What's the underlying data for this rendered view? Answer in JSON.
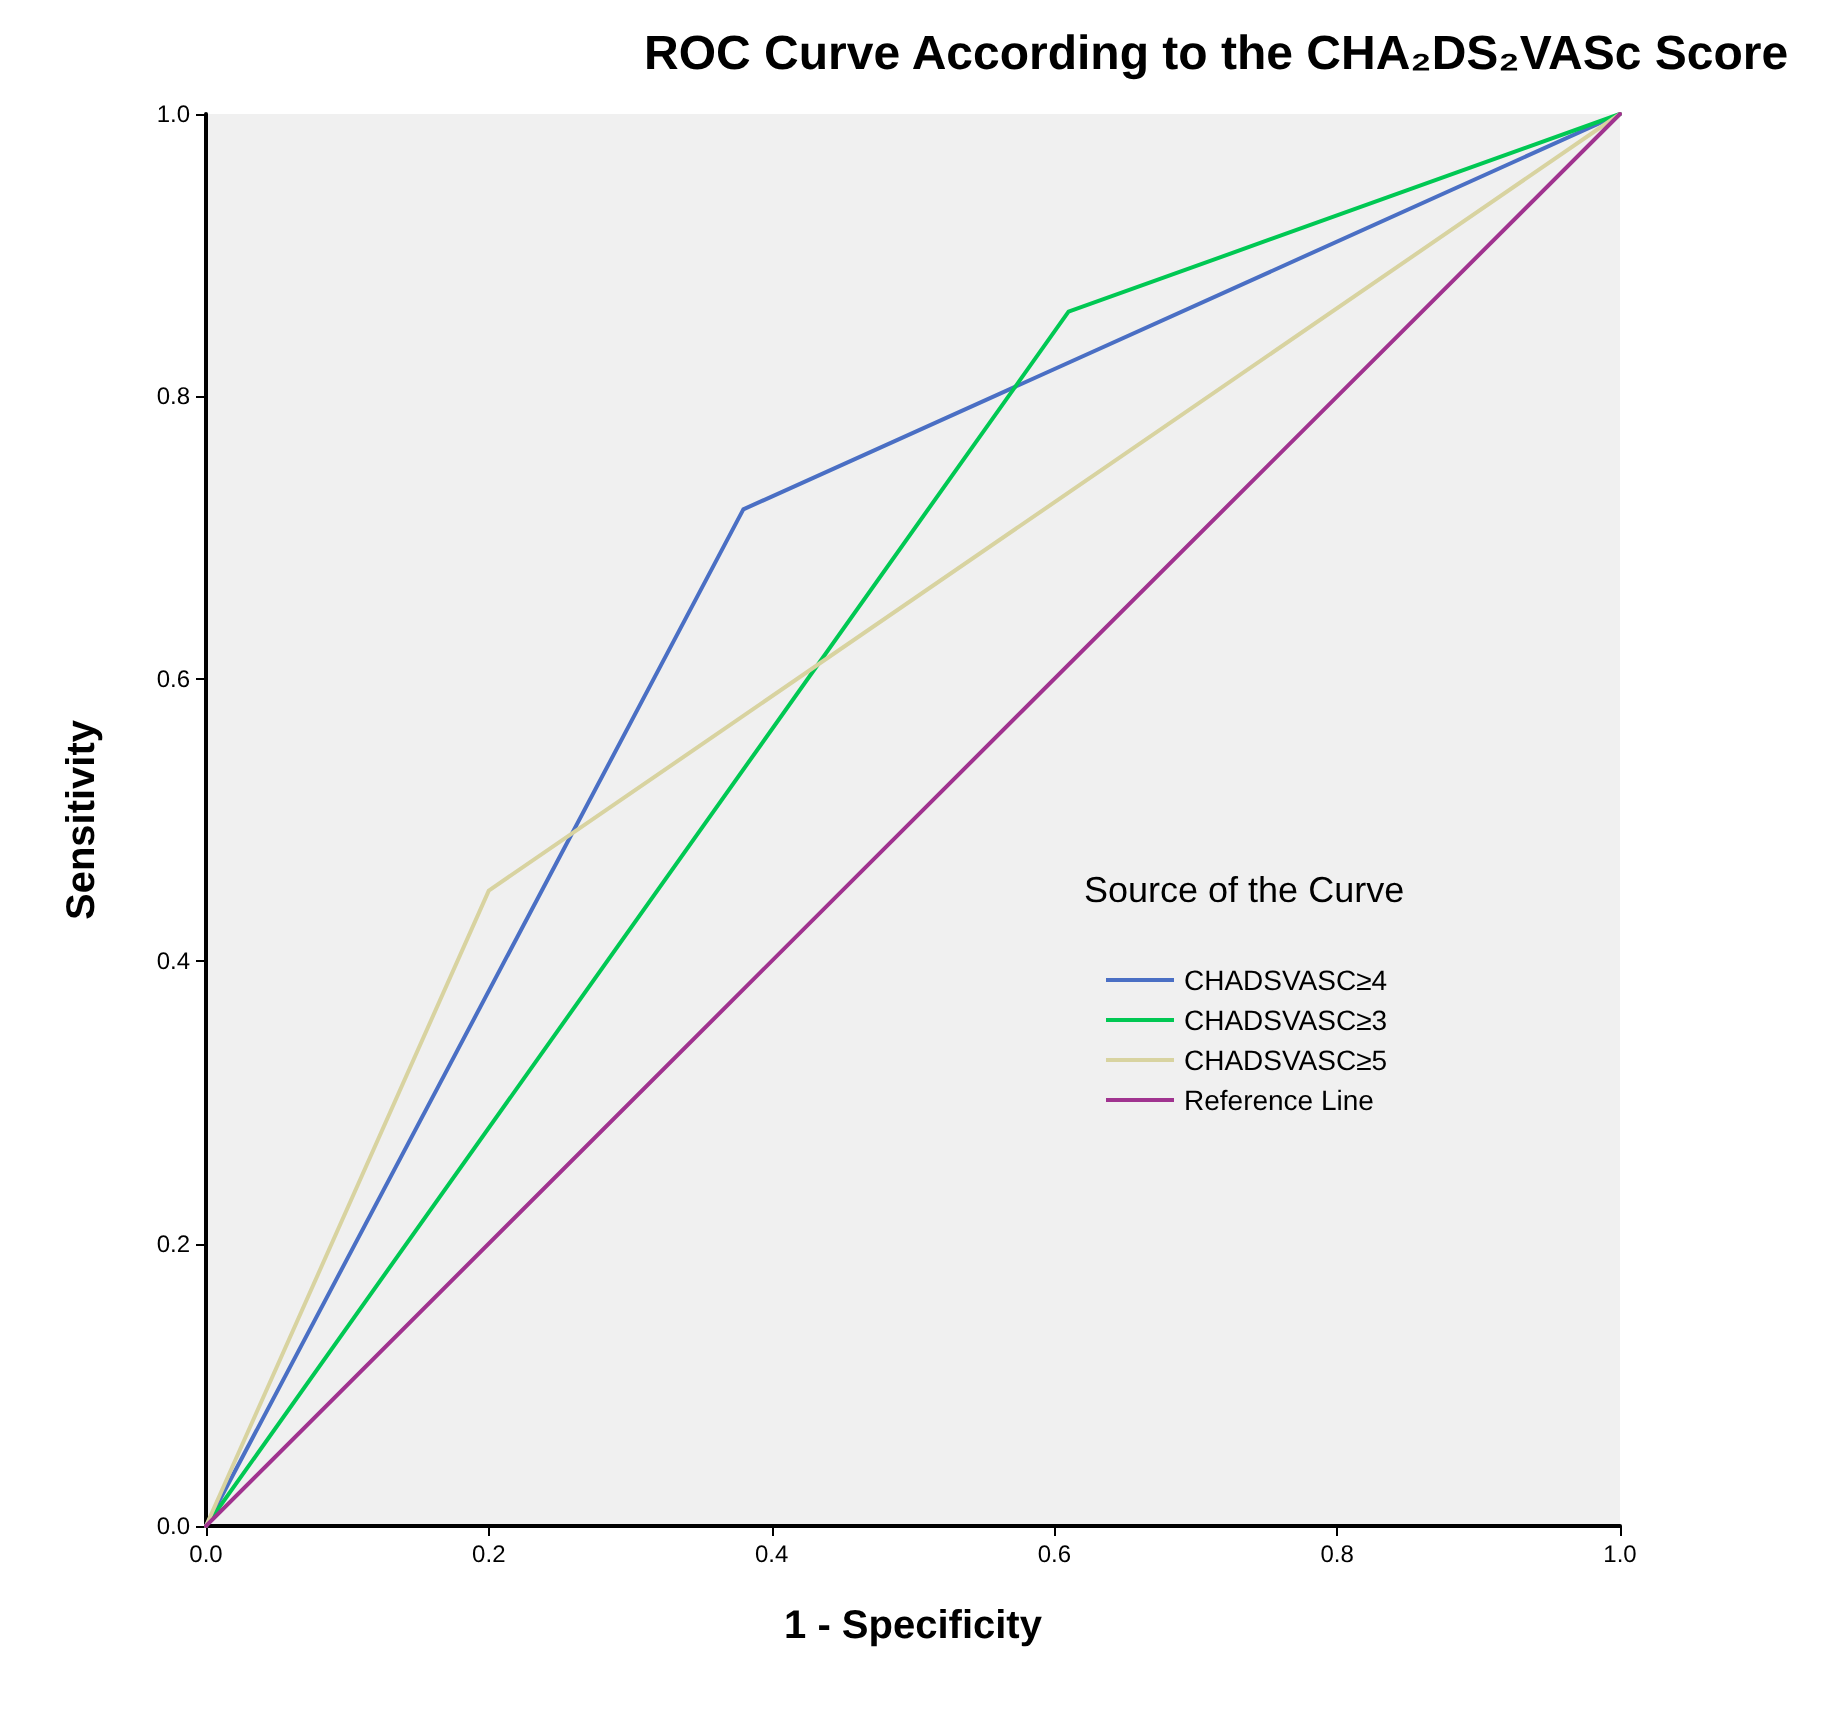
{
  "chart_data": {
    "type": "line",
    "title": "ROC Curve According to the CHA₂DS₂VASc Score",
    "xlabel": "1 - Specificity",
    "ylabel": "Sensitivity",
    "legend_title": "Source of the Curve",
    "legend": "right",
    "grid": false,
    "marker": "none",
    "line_style": "solid",
    "xlim": [
      0,
      1
    ],
    "ylim": [
      0,
      1
    ],
    "xticks": [
      {
        "value": 0,
        "label": "0.0"
      },
      {
        "value": 0.2,
        "label": "0.2"
      },
      {
        "value": 0.4,
        "label": "0.4"
      },
      {
        "value": 0.6,
        "label": "0.6"
      },
      {
        "value": 0.8,
        "label": "0.8"
      },
      {
        "value": 1,
        "label": "1.0"
      }
    ],
    "yticks": [
      {
        "value": 0,
        "label": "0.0"
      },
      {
        "value": 0.2,
        "label": "0.2"
      },
      {
        "value": 0.4,
        "label": "0.4"
      },
      {
        "value": 0.6,
        "label": "0.6"
      },
      {
        "value": 0.8,
        "label": "0.8"
      },
      {
        "value": 1,
        "label": "1.0"
      }
    ],
    "series": [
      {
        "name": "CHADSVASC≥4",
        "color": "#4a6fc4",
        "x": [
          0,
          0.38,
          1
        ],
        "values": [
          0,
          0.72,
          1
        ]
      },
      {
        "name": "CHADSVASC≥3",
        "color": "#00c853",
        "x": [
          0,
          0.61,
          1
        ],
        "values": [
          0,
          0.86,
          1
        ]
      },
      {
        "name": "CHADSVASC≥5",
        "color": "#d8d3a0",
        "x": [
          0,
          0.2,
          1
        ],
        "values": [
          0,
          0.45,
          1
        ]
      },
      {
        "name": "Reference Line",
        "color": "#a0338f",
        "x": [
          0,
          1
        ],
        "values": [
          0,
          1
        ]
      }
    ]
  }
}
